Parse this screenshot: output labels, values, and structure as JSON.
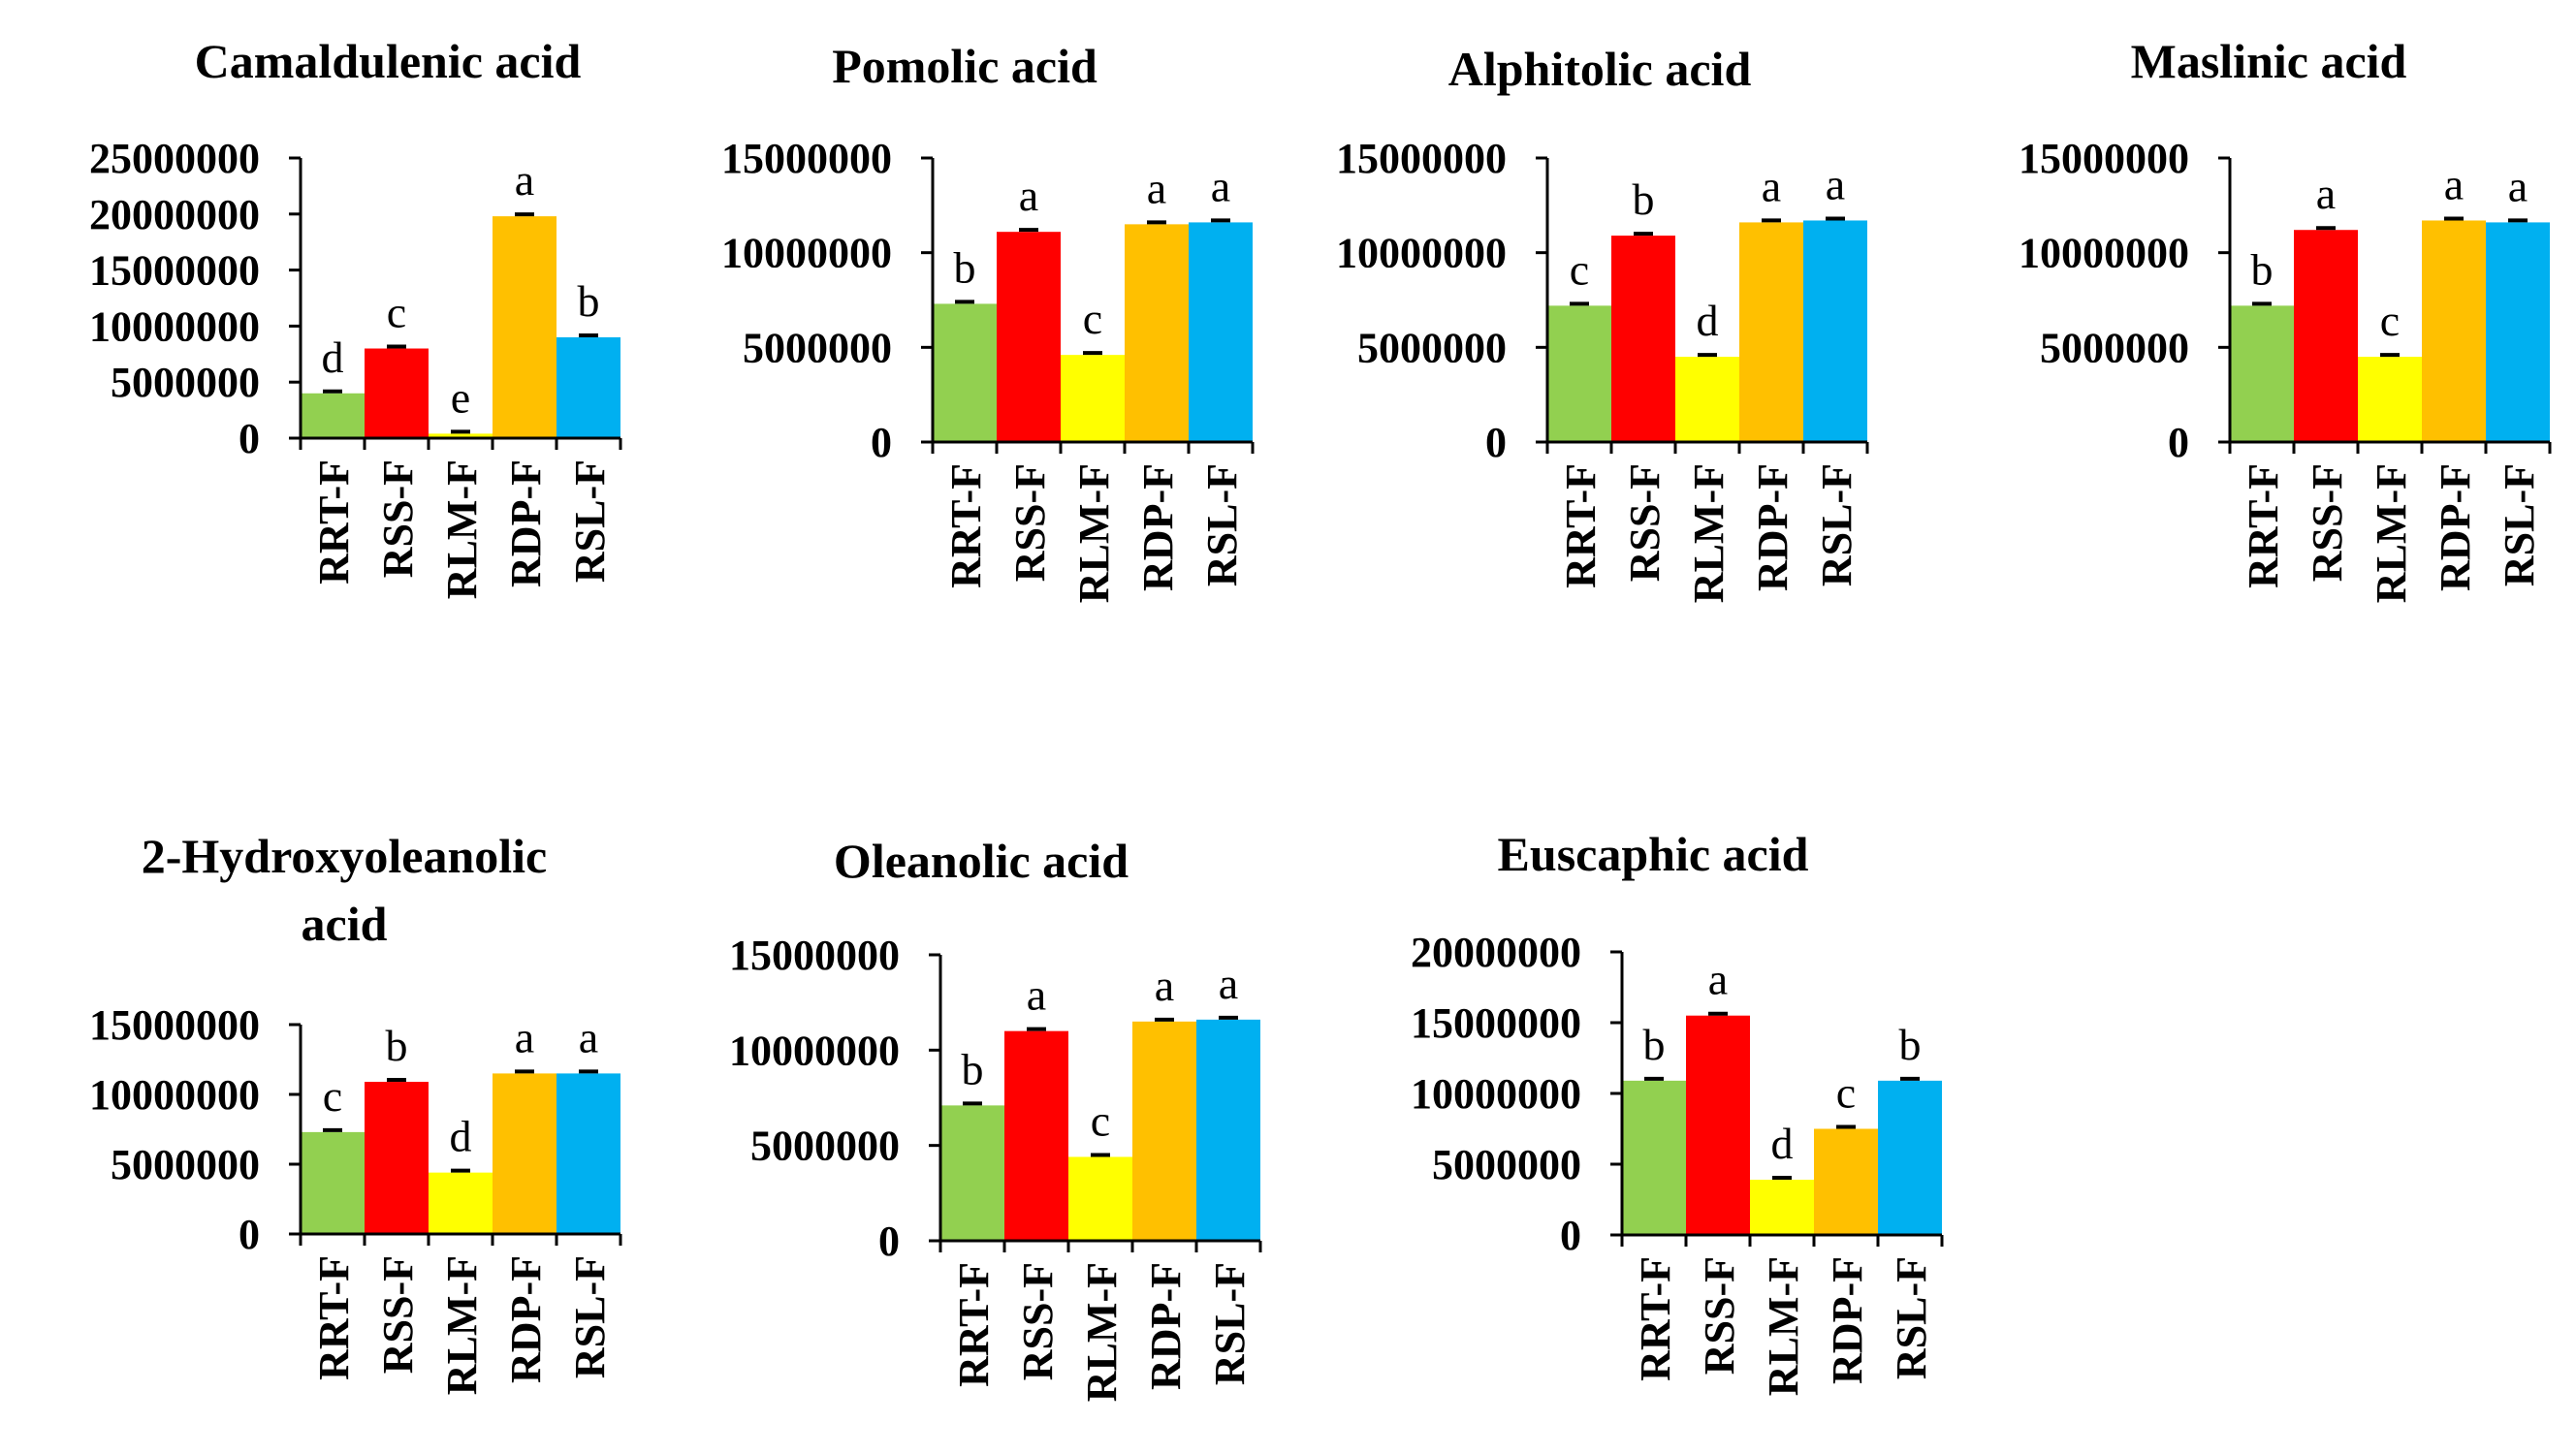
{
  "chart_data": [
    {
      "type": "bar",
      "title": [
        "Camaldulenic acid"
      ],
      "categories": [
        "RRT-F",
        "RSS-F",
        "RLM-F",
        "RDP-F",
        "RSL-F"
      ],
      "values": [
        4000000,
        8000000,
        400000,
        19800000,
        9000000
      ],
      "significance": [
        "d",
        "c",
        "e",
        "a",
        "b"
      ],
      "yticks": [
        "25000000",
        "20000000",
        "15000000",
        "10000000",
        "5000000",
        "0"
      ],
      "ylim": [
        0,
        25000000
      ],
      "xlabel": "",
      "ylabel": ""
    },
    {
      "type": "bar",
      "title": [
        "Pomolic acid"
      ],
      "categories": [
        "RRT-F",
        "RSS-F",
        "RLM-F",
        "RDP-F",
        "RSL-F"
      ],
      "values": [
        7300000,
        11100000,
        4600000,
        11500000,
        11600000
      ],
      "significance": [
        "b",
        "a",
        "c",
        "a",
        "a"
      ],
      "yticks": [
        "15000000",
        "10000000",
        "5000000",
        "0"
      ],
      "ylim": [
        0,
        15000000
      ],
      "xlabel": "",
      "ylabel": ""
    },
    {
      "type": "bar",
      "title": [
        "Alphitolic acid"
      ],
      "categories": [
        "RRT-F",
        "RSS-F",
        "RLM-F",
        "RDP-F",
        "RSL-F"
      ],
      "values": [
        7200000,
        10900000,
        4500000,
        11600000,
        11700000
      ],
      "significance": [
        "c",
        "b",
        "d",
        "a",
        "a"
      ],
      "yticks": [
        "15000000",
        "10000000",
        "5000000",
        "0"
      ],
      "ylim": [
        0,
        15000000
      ],
      "xlabel": "",
      "ylabel": ""
    },
    {
      "type": "bar",
      "title": [
        "Maslinic acid"
      ],
      "categories": [
        "RRT-F",
        "RSS-F",
        "RLM-F",
        "RDP-F",
        "RSL-F"
      ],
      "values": [
        7200000,
        11200000,
        4500000,
        11700000,
        11600000
      ],
      "significance": [
        "b",
        "a",
        "c",
        "a",
        "a"
      ],
      "yticks": [
        "15000000",
        "10000000",
        "5000000",
        "0"
      ],
      "ylim": [
        0,
        15000000
      ],
      "xlabel": "",
      "ylabel": ""
    },
    {
      "type": "bar",
      "title": [
        "2-Hydroxyoleanolic",
        "acid"
      ],
      "categories": [
        "RRT-F",
        "RSS-F",
        "RLM-F",
        "RDP-F",
        "RSL-F"
      ],
      "values": [
        7300000,
        10900000,
        4400000,
        11500000,
        11500000
      ],
      "significance": [
        "c",
        "b",
        "d",
        "a",
        "a"
      ],
      "yticks": [
        "15000000",
        "10000000",
        "5000000",
        "0"
      ],
      "ylim": [
        0,
        15000000
      ],
      "xlabel": "",
      "ylabel": ""
    },
    {
      "type": "bar",
      "title": [
        "Oleanolic acid"
      ],
      "categories": [
        "RRT-F",
        "RSS-F",
        "RLM-F",
        "RDP-F",
        "RSL-F"
      ],
      "values": [
        7100000,
        11000000,
        4400000,
        11500000,
        11600000
      ],
      "significance": [
        "b",
        "a",
        "c",
        "a",
        "a"
      ],
      "yticks": [
        "15000000",
        "10000000",
        "5000000",
        "0"
      ],
      "ylim": [
        0,
        15000000
      ],
      "xlabel": "",
      "ylabel": ""
    },
    {
      "type": "bar",
      "title": [
        "Euscaphic acid"
      ],
      "categories": [
        "RRT-F",
        "RSS-F",
        "RLM-F",
        "RDP-F",
        "RSL-F"
      ],
      "values": [
        10900000,
        15500000,
        3900000,
        7500000,
        10900000
      ],
      "significance": [
        "b",
        "a",
        "d",
        "c",
        "b"
      ],
      "yticks": [
        "20000000",
        "15000000",
        "10000000",
        "5000000",
        "0"
      ],
      "ylim": [
        0,
        20000000
      ],
      "xlabel": "",
      "ylabel": ""
    }
  ],
  "colors": {
    "bars": [
      "#92d050",
      "#ff0000",
      "#ffff00",
      "#ffc000",
      "#00b0f0"
    ],
    "axis": "#000000",
    "background": "#ffffff"
  }
}
